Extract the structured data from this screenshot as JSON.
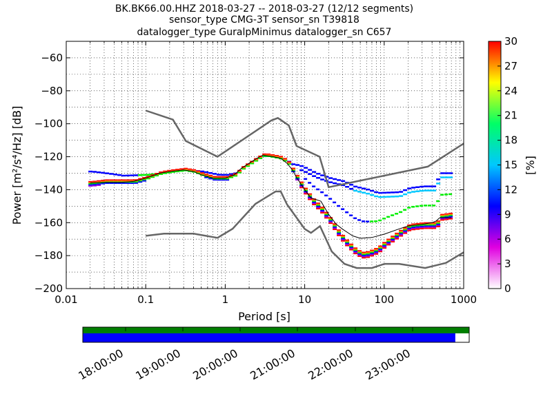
{
  "chart_data": {
    "type": "heatmap",
    "title_lines": [
      "BK.BK66.00.HHZ   2018-03-27 -- 2018-03-27  (12/12 segments)",
      "sensor_type CMG-3T sensor_sn T39818",
      "datalogger_type GuralpMinimus datalogger_sn C657"
    ],
    "xlabel": "Period [s]",
    "ylabel": "Power [m²/s⁴/Hz] [dB]",
    "x_scale": "log",
    "xlim": [
      0.01,
      1000
    ],
    "ylim": [
      -200,
      -50
    ],
    "x_ticks": [
      {
        "v": 0.01,
        "label": "0.01"
      },
      {
        "v": 0.1,
        "label": "0.1"
      },
      {
        "v": 1,
        "label": "1"
      },
      {
        "v": 10,
        "label": "10"
      },
      {
        "v": 100,
        "label": "100"
      },
      {
        "v": 1000,
        "label": "1000"
      }
    ],
    "y_ticks": [
      {
        "v": -60,
        "label": "−60"
      },
      {
        "v": -80,
        "label": "−80"
      },
      {
        "v": -100,
        "label": "−100"
      },
      {
        "v": -120,
        "label": "−120"
      },
      {
        "v": -140,
        "label": "−140"
      },
      {
        "v": -160,
        "label": "−160"
      },
      {
        "v": -180,
        "label": "−180"
      },
      {
        "v": -200,
        "label": "−200"
      }
    ],
    "grid": "dotted",
    "colorbar": {
      "label": "[%]",
      "range": [
        0,
        30
      ],
      "ticks": [
        {
          "v": 0,
          "label": "0"
        },
        {
          "v": 3,
          "label": "3"
        },
        {
          "v": 6,
          "label": "6"
        },
        {
          "v": 9,
          "label": "9"
        },
        {
          "v": 12,
          "label": "12"
        },
        {
          "v": 15,
          "label": "15"
        },
        {
          "v": 18,
          "label": "18"
        },
        {
          "v": 21,
          "label": "21"
        },
        {
          "v": 24,
          "label": "24"
        },
        {
          "v": 27,
          "label": "27"
        },
        {
          "v": 30,
          "label": "30"
        }
      ],
      "colors": [
        "#ffffff",
        "#e000e0",
        "#0000ff",
        "#00c8ff",
        "#00ff66",
        "#ffff00",
        "#ff0000"
      ]
    },
    "noise_models": {
      "high": [
        [
          0.1,
          -92
        ],
        [
          0.22,
          -97.5
        ],
        [
          0.32,
          -110.5
        ],
        [
          0.8,
          -120
        ],
        [
          3.8,
          -98
        ],
        [
          4.6,
          -96.5
        ],
        [
          6.3,
          -101
        ],
        [
          7.9,
          -113.5
        ],
        [
          15.4,
          -120
        ],
        [
          20,
          -138.5
        ],
        [
          354,
          -126
        ],
        [
          1000,
          -112
        ]
      ],
      "low": [
        [
          0.1,
          -168
        ],
        [
          0.17,
          -166.7
        ],
        [
          0.4,
          -166.7
        ],
        [
          0.8,
          -169.2
        ],
        [
          1.24,
          -163.7
        ],
        [
          2.4,
          -148.6
        ],
        [
          4.3,
          -141.1
        ],
        [
          5,
          -141.1
        ],
        [
          6,
          -149
        ],
        [
          10,
          -163.8
        ],
        [
          12,
          -166.2
        ],
        [
          15.6,
          -162.1
        ],
        [
          21.9,
          -177.5
        ],
        [
          31.6,
          -185
        ],
        [
          45,
          -187.5
        ],
        [
          70,
          -187.5
        ],
        [
          101,
          -185
        ],
        [
          154,
          -185
        ],
        [
          328,
          -187.5
        ],
        [
          600,
          -184.4
        ],
        [
          1000,
          -178
        ]
      ]
    },
    "mode_line": [
      [
        0.02,
        -136
      ],
      [
        0.03,
        -135
      ],
      [
        0.05,
        -135
      ],
      [
        0.07,
        -135
      ],
      [
        0.1,
        -133
      ],
      [
        0.15,
        -130
      ],
      [
        0.2,
        -129
      ],
      [
        0.3,
        -128
      ],
      [
        0.4,
        -129
      ],
      [
        0.5,
        -131
      ],
      [
        0.7,
        -133
      ],
      [
        1,
        -133
      ],
      [
        1.3,
        -131
      ],
      [
        1.6,
        -127
      ],
      [
        2,
        -124
      ],
      [
        2.5,
        -121
      ],
      [
        3,
        -119
      ],
      [
        4,
        -120
      ],
      [
        5,
        -121
      ],
      [
        6,
        -124
      ],
      [
        7,
        -129
      ],
      [
        8,
        -134
      ],
      [
        10,
        -141
      ],
      [
        12,
        -146
      ],
      [
        16,
        -152
      ],
      [
        20,
        -158
      ],
      [
        25,
        -165
      ],
      [
        30,
        -170
      ],
      [
        40,
        -176
      ],
      [
        50,
        -179
      ],
      [
        60,
        -178.5
      ],
      [
        80,
        -176
      ],
      [
        100,
        -172
      ],
      [
        130,
        -168
      ],
      [
        160,
        -165
      ],
      [
        200,
        -162
      ],
      [
        300,
        -161
      ],
      [
        400,
        -161
      ],
      [
        450,
        -160
      ],
      [
        500,
        -156
      ],
      [
        700,
        -155
      ]
    ],
    "median_line": [
      [
        0.02,
        -136
      ],
      [
        0.03,
        -135.5
      ],
      [
        0.05,
        -135.5
      ],
      [
        0.07,
        -135
      ],
      [
        0.1,
        -133
      ],
      [
        0.15,
        -130
      ],
      [
        0.2,
        -129
      ],
      [
        0.3,
        -128
      ],
      [
        0.4,
        -129
      ],
      [
        0.5,
        -131
      ],
      [
        0.7,
        -133
      ],
      [
        1,
        -133
      ],
      [
        1.3,
        -131
      ],
      [
        1.6,
        -127
      ],
      [
        2,
        -124
      ],
      [
        2.5,
        -121
      ],
      [
        3,
        -119
      ],
      [
        4,
        -120
      ],
      [
        5,
        -121
      ],
      [
        6,
        -124
      ],
      [
        7,
        -128
      ],
      [
        8,
        -133
      ],
      [
        10,
        -140
      ],
      [
        12,
        -145
      ],
      [
        16,
        -147
      ],
      [
        20,
        -155
      ],
      [
        25,
        -161
      ],
      [
        30,
        -164
      ],
      [
        40,
        -168
      ],
      [
        50,
        -169.5
      ],
      [
        70,
        -169
      ],
      [
        100,
        -167
      ],
      [
        150,
        -164
      ],
      [
        200,
        -162
      ],
      [
        300,
        -161
      ],
      [
        400,
        -160
      ],
      [
        450,
        -159
      ],
      [
        500,
        -157
      ],
      [
        700,
        -157
      ]
    ],
    "upper_band": [
      [
        0.02,
        -129
      ],
      [
        0.03,
        -130
      ],
      [
        0.05,
        -131.5
      ],
      [
        0.1,
        -131
      ],
      [
        0.15,
        -130
      ],
      [
        0.2,
        -128.5
      ],
      [
        0.3,
        -128
      ],
      [
        0.5,
        -129
      ],
      [
        0.8,
        -131
      ],
      [
        1,
        -131
      ],
      [
        1.3,
        -130
      ],
      [
        1.6,
        -127
      ],
      [
        2,
        -124
      ],
      [
        2.5,
        -121
      ],
      [
        3,
        -119.5
      ],
      [
        4,
        -120
      ],
      [
        5,
        -121
      ],
      [
        6,
        -123
      ],
      [
        7,
        -125
      ],
      [
        8,
        -125
      ],
      [
        10,
        -127
      ],
      [
        12,
        -129
      ],
      [
        15,
        -131
      ],
      [
        20,
        -133
      ],
      [
        30,
        -135
      ],
      [
        40,
        -138
      ],
      [
        60,
        -140
      ],
      [
        80,
        -142
      ],
      [
        150,
        -141.5
      ],
      [
        200,
        -139
      ],
      [
        300,
        -138
      ],
      [
        400,
        -138
      ],
      [
        500,
        -130
      ],
      [
        700,
        -130
      ]
    ],
    "timeline": {
      "time_labels": [
        "18:00:00",
        "19:00:00",
        "20:00:00",
        "21:00:00",
        "22:00:00",
        "23:00:00"
      ],
      "green_fraction": 1.0,
      "blue_fraction": 0.964
    }
  }
}
